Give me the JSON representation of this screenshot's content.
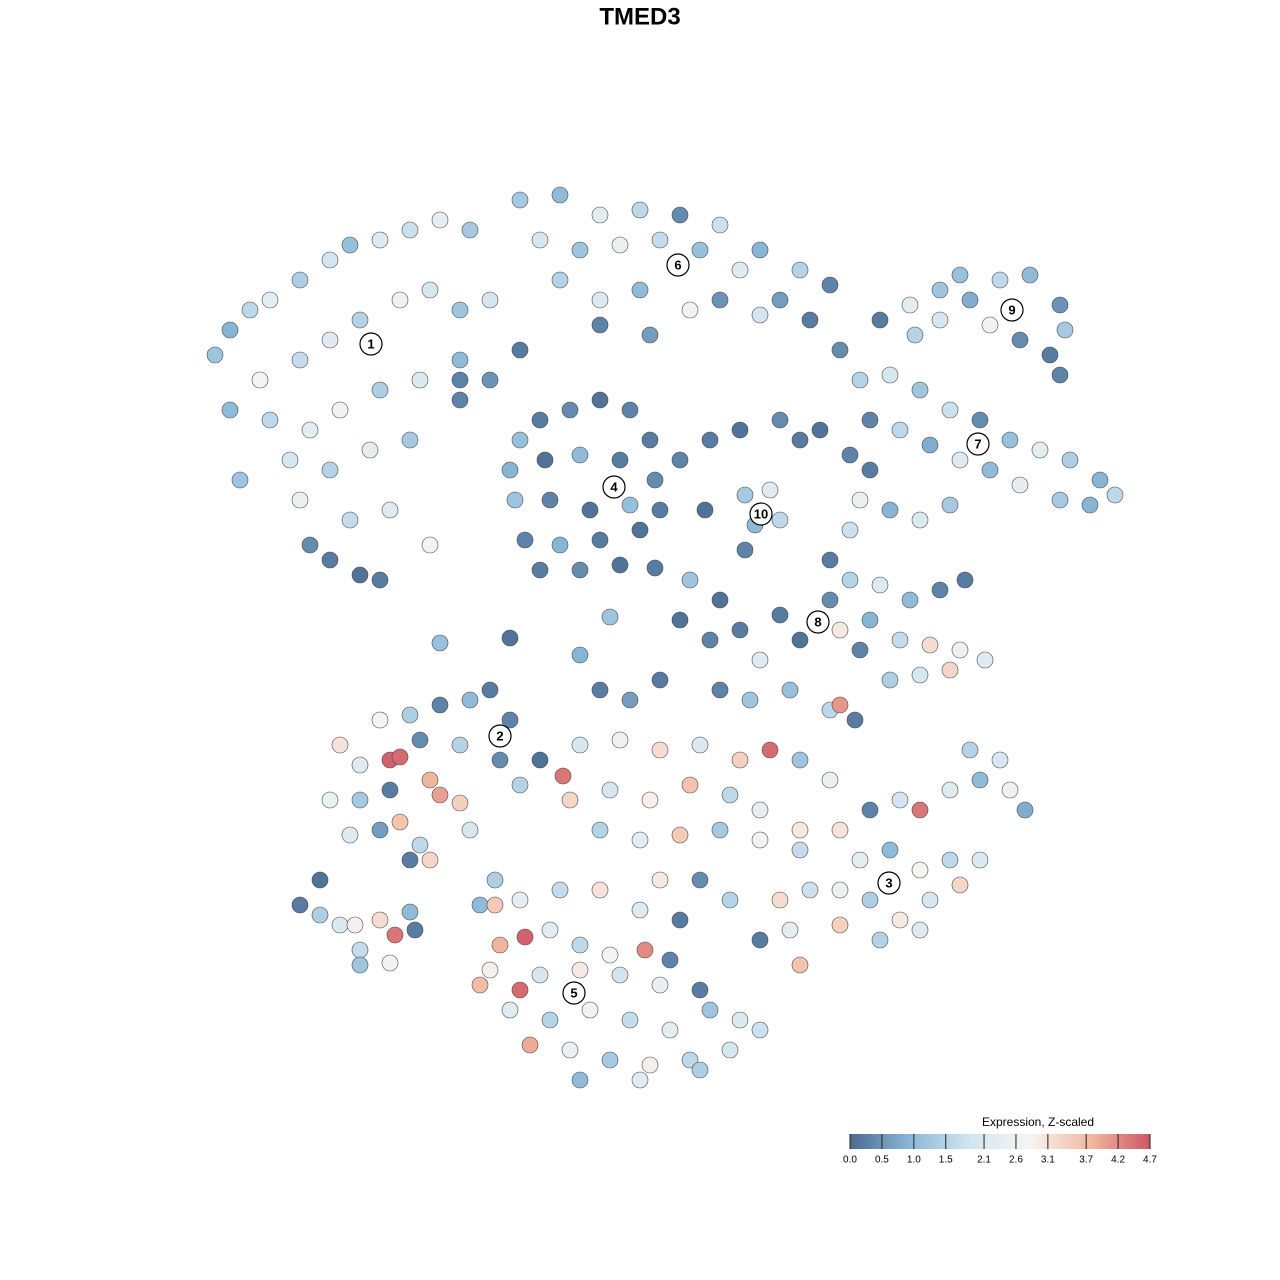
{
  "chart_data": {
    "type": "scatter",
    "title": "TMED3",
    "xlim": [
      0,
      128
    ],
    "ylim": [
      128,
      0
    ],
    "x": [
      21.5,
      23,
      25,
      27,
      30,
      33,
      35,
      38,
      41,
      44,
      47,
      26,
      30,
      33,
      36,
      40,
      43,
      46,
      49,
      23,
      27,
      31,
      34,
      38,
      42,
      46,
      29,
      33,
      37,
      41,
      24,
      30,
      35,
      39,
      43,
      33,
      36,
      31,
      38,
      46,
      49,
      52,
      52,
      56,
      60,
      64,
      68,
      72,
      76,
      80,
      83,
      54,
      58,
      62,
      66,
      70,
      74,
      78,
      56,
      60,
      64,
      69,
      72,
      76,
      81,
      60,
      65,
      52,
      54,
      57,
      60,
      63,
      65,
      51,
      54.5,
      58,
      62,
      65.5,
      51.5,
      55,
      59,
      63,
      66,
      52.5,
      56,
      60,
      64,
      54,
      58,
      62,
      68,
      71,
      74,
      78,
      80,
      74.5,
      77,
      75.5,
      78,
      74.5,
      84,
      86,
      89,
      92,
      95,
      98,
      101,
      104,
      107,
      110,
      111.5,
      87,
      90,
      93,
      96,
      99,
      102,
      106,
      109,
      86,
      89,
      92,
      95,
      85,
      87,
      82,
      85,
      88,
      91,
      94,
      97,
      100,
      103,
      106,
      106.5,
      105,
      99,
      94,
      96,
      102,
      106,
      91.5,
      83,
      85,
      88,
      91,
      94,
      96.5,
      87,
      90,
      93,
      96,
      98.5,
      89,
      92,
      95,
      78,
      80,
      84,
      86,
      83,
      72,
      69,
      65.5,
      61,
      58,
      51,
      44,
      46,
      70.5,
      68,
      71,
      74,
      76,
      79,
      60,
      63,
      66,
      72,
      75,
      83,
      84,
      85.5,
      34,
      36,
      39,
      40,
      38,
      41,
      44,
      47,
      49,
      42,
      46,
      51,
      33,
      36,
      39,
      43,
      44,
      46,
      40,
      42,
      41,
      43,
      35,
      38,
      47,
      50,
      54,
      56.3,
      52,
      58,
      62,
      66,
      70,
      74,
      77,
      80,
      83,
      57,
      61,
      65,
      69,
      73,
      76,
      80,
      60,
      64,
      68,
      72,
      76,
      80,
      84,
      87,
      90,
      92,
      95,
      98,
      101,
      102.5,
      86,
      89,
      92,
      95,
      98,
      84,
      87,
      90,
      93,
      96,
      78,
      81,
      84,
      79,
      80,
      76,
      73,
      70,
      66,
      88,
      92,
      97,
      100,
      49.5,
      48,
      49.5,
      52,
      56,
      60,
      64,
      68,
      50,
      52.5,
      55,
      58,
      61,
      64.5,
      67,
      49,
      52,
      54,
      58,
      62,
      66,
      70,
      48,
      51,
      55,
      59,
      63,
      67,
      71,
      74,
      53,
      57,
      61,
      65,
      69,
      73,
      58,
      64,
      70,
      76,
      30,
      32,
      32,
      34,
      35.5,
      36,
      38,
      39.5,
      41,
      39,
      41.5,
      36
    ],
    "y": [
      35.5,
      33,
      31,
      30,
      28,
      26,
      24.5,
      24,
      23,
      22,
      23,
      38,
      36,
      34,
      32,
      30,
      29,
      31,
      30,
      41,
      42,
      43,
      41,
      39,
      38,
      36,
      46,
      47,
      45,
      44,
      48,
      50,
      52,
      51,
      54.5,
      56,
      57.5,
      54.5,
      58,
      40,
      38,
      35,
      20,
      19.5,
      21.5,
      21,
      21.5,
      22.5,
      25,
      27,
      28.5,
      24,
      25,
      24.5,
      24,
      25,
      27,
      30,
      28,
      30,
      29,
      31,
      30,
      31.5,
      32,
      32.5,
      33.5,
      44,
      42,
      41,
      40,
      41,
      44,
      47,
      46,
      45.5,
      46,
      48,
      50,
      50,
      51,
      50.5,
      51,
      54,
      54.5,
      54,
      53,
      57,
      57,
      56.5,
      46,
      44,
      43,
      42,
      44,
      49.5,
      49,
      52.5,
      52,
      55,
      35,
      38,
      37.5,
      39,
      41,
      42,
      44,
      45,
      46,
      48,
      49.5,
      42,
      43,
      44.5,
      46,
      47,
      48.5,
      50,
      50.5,
      50,
      51,
      52,
      50.5,
      53,
      47,
      43,
      45.5,
      32,
      30.5,
      29,
      30,
      28,
      27.5,
      30.5,
      33,
      35.5,
      32.5,
      32,
      27.5,
      34,
      37.5,
      33.5,
      56,
      58,
      58.5,
      60,
      59,
      58,
      62,
      64,
      64.5,
      65,
      66,
      68,
      67.5,
      67,
      61.5,
      64,
      63,
      65,
      60,
      60,
      58,
      56.8,
      61.7,
      65.5,
      63.8,
      64.3,
      38,
      51,
      62,
      64,
      63,
      66,
      69,
      69,
      70,
      68,
      69,
      70,
      71,
      70.5,
      72,
      74.5,
      76.5,
      76,
      75.7,
      72,
      71.5,
      70.5,
      70,
      69,
      74,
      74.5,
      72,
      80,
      80,
      79,
      78,
      79.5,
      80.3,
      82.2,
      84.5,
      86,
      86,
      83.5,
      83,
      83,
      76,
      76,
      77.6,
      78.5,
      74.5,
      74,
      75,
      74.5,
      76,
      75,
      76,
      78,
      80,
      79,
      80,
      78.5,
      79.5,
      81,
      83,
      83,
      84,
      83.5,
      83,
      84,
      85,
      83,
      81,
      80,
      81,
      79,
      78,
      79,
      81,
      86,
      85,
      87,
      86,
      86,
      89,
      90,
      92,
      90,
      88.5,
      90,
      89,
      92.5,
      93,
      96.5,
      94,
      90,
      88,
      88,
      94,
      93,
      75,
      76,
      88,
      90.5,
      90.5,
      90,
      89,
      89,
      91,
      92,
      94.5,
      93.7,
      93,
      94.5,
      95.5,
      95,
      96,
      97,
      99,
      97.5,
      97,
      97.5,
      98.5,
      99,
      98.5,
      101,
      102,
      101,
      102,
      103,
      101,
      102,
      104.5,
      105,
      106,
      106.5,
      106,
      105,
      108,
      108,
      107,
      103,
      90.5,
      88,
      91.5,
      92.5,
      92.5,
      95,
      92,
      93.5,
      91.2,
      96.3,
      93,
      96.5
    ],
    "values": [
      1.2,
      0.9,
      1.6,
      2.3,
      1.4,
      1.9,
      1.1,
      2.1,
      1.8,
      2.4,
      1.3,
      2.8,
      1.7,
      2.2,
      1.5,
      2.6,
      2.0,
      1.2,
      1.9,
      1.0,
      1.6,
      2.3,
      2.7,
      1.4,
      2.1,
      1.0,
      2.0,
      1.5,
      2.4,
      1.3,
      1.2,
      2.5,
      1.7,
      2.2,
      2.8,
      0.2,
      0.1,
      0.4,
      0.2,
      0.3,
      0.5,
      0.2,
      1.3,
      1.0,
      2.3,
      1.6,
      0.4,
      1.8,
      0.9,
      1.5,
      0.3,
      2.0,
      1.2,
      2.5,
      1.7,
      1.1,
      2.2,
      0.6,
      1.5,
      2.1,
      1.0,
      2.7,
      0.5,
      1.9,
      0.2,
      0.3,
      0.6,
      1.1,
      0.2,
      0.4,
      0.1,
      0.3,
      0.2,
      0.9,
      0.1,
      1.0,
      0.2,
      0.4,
      1.2,
      0.3,
      0.1,
      1.1,
      0.2,
      0.3,
      0.9,
      0.2,
      0.1,
      0.2,
      0.4,
      0.1,
      0.3,
      0.2,
      0.1,
      0.4,
      0.2,
      1.3,
      2.2,
      1.0,
      1.6,
      0.3,
      0.4,
      1.5,
      2.0,
      1.2,
      1.8,
      0.4,
      1.1,
      2.3,
      1.4,
      0.9,
      1.6,
      0.3,
      1.6,
      0.8,
      2.2,
      1.0,
      2.4,
      1.3,
      0.9,
      2.5,
      0.9,
      2.1,
      1.3,
      1.8,
      0.2,
      0.1,
      0.3,
      0.2,
      2.3,
      1.2,
      0.8,
      1.6,
      1.0,
      0.5,
      1.3,
      0.2,
      2.7,
      2.0,
      1.1,
      0.4,
      0.3,
      1.5,
      0.2,
      1.5,
      2.1,
      1.0,
      0.3,
      0.2,
      0.9,
      1.7,
      3.2,
      2.6,
      2.2,
      1.4,
      2.0,
      3.3,
      0.2,
      0.1,
      3.0,
      0.3,
      0.4,
      0.1,
      1.2,
      0.2,
      1.2,
      0.9,
      0.1,
      1.1,
      0.3,
      0.1,
      0.1,
      0.3,
      0.2,
      2.2,
      1.1,
      0.2,
      0.6,
      0.2,
      0.3,
      1.2,
      1.6,
      4.1,
      0.2,
      3.1,
      2.2,
      4.6,
      4.5,
      2.8,
      1.4,
      0.3,
      1.0,
      0.2,
      0.4,
      1.5,
      0.3,
      2.5,
      1.3,
      0.2,
      3.8,
      4.0,
      3.4,
      3.6,
      1.6,
      0.2,
      3.3,
      2.2,
      0.6,
      2.0,
      0.4,
      0.1,
      4.4,
      1.5,
      2.0,
      2.6,
      3.2,
      2.1,
      3.4,
      4.5,
      1.2,
      2.5,
      3.3,
      2.0,
      2.9,
      3.6,
      1.6,
      2.4,
      3.0,
      1.5,
      2.3,
      3.5,
      1.3,
      2.7,
      1.7,
      3.1,
      0.3,
      1.9,
      4.4,
      2.2,
      1.0,
      2.6,
      0.8,
      2.3,
      1.0,
      2.8,
      1.6,
      2.1,
      2.6,
      1.4,
      3.0,
      2.0,
      3.3,
      3.2,
      1.8,
      3.4,
      2.4,
      3.6,
      0.2,
      1.5,
      0.4,
      3.0,
      1.5,
      2.2,
      1.5,
      2.0,
      1.4,
      1.0,
      3.5,
      2.4,
      1.7,
      3.1,
      2.2,
      0.2,
      3.8,
      4.6,
      2.3,
      1.6,
      2.8,
      4.2,
      0.3,
      2.9,
      4.5,
      2.0,
      3.0,
      1.9,
      2.5,
      0.2,
      3.7,
      2.2,
      1.5,
      2.7,
      1.7,
      2.4,
      1.2,
      2.1,
      3.9,
      2.5,
      1.3,
      2.9,
      1.6,
      2.0,
      1.0,
      2.2,
      1.4,
      1.8,
      0.2,
      0.1,
      1.4,
      2.1,
      2.9,
      1.7,
      3.2,
      4.4,
      1.0,
      2.7,
      0.2,
      1.2
    ],
    "cluster_labels": [
      {
        "label": "1",
        "x": 37.1,
        "y": 34.4
      },
      {
        "label": "2",
        "x": 50.0,
        "y": 73.6
      },
      {
        "label": "3",
        "x": 88.9,
        "y": 88.3
      },
      {
        "label": "4",
        "x": 61.4,
        "y": 48.7
      },
      {
        "label": "5",
        "x": 57.4,
        "y": 99.3
      },
      {
        "label": "6",
        "x": 67.8,
        "y": 26.5
      },
      {
        "label": "7",
        "x": 97.8,
        "y": 44.4
      },
      {
        "label": "8",
        "x": 81.8,
        "y": 62.2
      },
      {
        "label": "9",
        "x": 101.2,
        "y": 31.0
      },
      {
        "label": "10",
        "x": 76.1,
        "y": 51.4
      }
    ],
    "colorbar_title": "Expression, Z-scaled",
    "clim": [
      0,
      4.7
    ],
    "colormap": [
      "#4a6a92",
      "#8ab8d7",
      "#d2e5f0",
      "#f7f4f2",
      "#f2b9a0",
      "#cd5664"
    ],
    "cticks": [
      {
        "value": 0,
        "label": "0.0"
      },
      0.5,
      {
        "value": 1,
        "label": "1.0"
      },
      1.5,
      2.1,
      2.6,
      3.1,
      3.7,
      4.2,
      4.7
    ]
  }
}
